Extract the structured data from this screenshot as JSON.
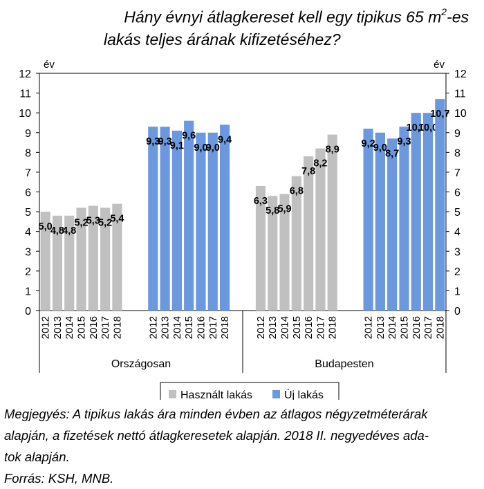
{
  "title": {
    "line1_before": "Hány évnyi átlagkereset kell egy tipikus 65 m",
    "line1_sup": "2",
    "line1_after": "-es",
    "line2": "lakás teljes árának kifizetéséhez?"
  },
  "chart_data": {
    "type": "bar",
    "y_unit_left": "év",
    "y_unit_right": "év",
    "ylim": [
      0,
      12
    ],
    "yticks": [
      0,
      1,
      2,
      3,
      4,
      5,
      6,
      7,
      8,
      9,
      10,
      11,
      12
    ],
    "groups": [
      {
        "name": "Országosan",
        "series": [
          {
            "name": "Használt lakás",
            "color": "#c0c0c0",
            "x": [
              "2012",
              "2013",
              "2014",
              "2015",
              "2016",
              "2017",
              "2018"
            ],
            "values": [
              5.0,
              4.8,
              4.8,
              5.2,
              5.3,
              5.2,
              5.4
            ],
            "labels": [
              "5,0",
              "4,8",
              "4,8",
              "5,2",
              "5,3",
              "5,2",
              "5,4"
            ]
          },
          {
            "name": "Új lakás",
            "color": "#6b98df",
            "x": [
              "2012",
              "2013",
              "2014",
              "2015",
              "2016",
              "2017",
              "2018"
            ],
            "values": [
              9.3,
              9.3,
              9.1,
              9.6,
              9.0,
              9.0,
              9.4
            ],
            "labels": [
              "9,3",
              "9,3",
              "9,1",
              "9,6",
              "9,0",
              "9,0",
              "9,4"
            ]
          }
        ]
      },
      {
        "name": "Budapesten",
        "series": [
          {
            "name": "Használt lakás",
            "color": "#c0c0c0",
            "x": [
              "2012",
              "2013",
              "2014",
              "2015",
              "2016",
              "2017",
              "2018"
            ],
            "values": [
              6.3,
              5.8,
              5.9,
              6.8,
              7.8,
              8.2,
              8.9
            ],
            "labels": [
              "6,3",
              "5,8",
              "5,9",
              "6,8",
              "7,8",
              "8,2",
              "8,9"
            ]
          },
          {
            "name": "Új lakás",
            "color": "#6b98df",
            "x": [
              "2012",
              "2013",
              "2014",
              "2015",
              "2016",
              "2017",
              "2018"
            ],
            "values": [
              9.2,
              9.0,
              8.7,
              9.3,
              10.0,
              10.0,
              10.7
            ],
            "labels": [
              "9,2",
              "9,0",
              "8,7",
              "9,3",
              "10,0",
              "10,0",
              "10,7"
            ]
          }
        ]
      }
    ],
    "legend": {
      "position": "bottom",
      "entries": [
        {
          "name": "Használt lakás",
          "color": "#c0c0c0"
        },
        {
          "name": "Új lakás",
          "color": "#6b98df"
        }
      ]
    },
    "grid": false
  },
  "note": {
    "lines": [
      "Megjegyés: A tipikus lakás ára minden évben az átlagos négyzetméterárak",
      "alapján, a fizetések nettó átlagkeresetek alapján. 2018 II. negyedéves ada-",
      "tok alapján.",
      "Forrás: KSH, MNB."
    ]
  }
}
